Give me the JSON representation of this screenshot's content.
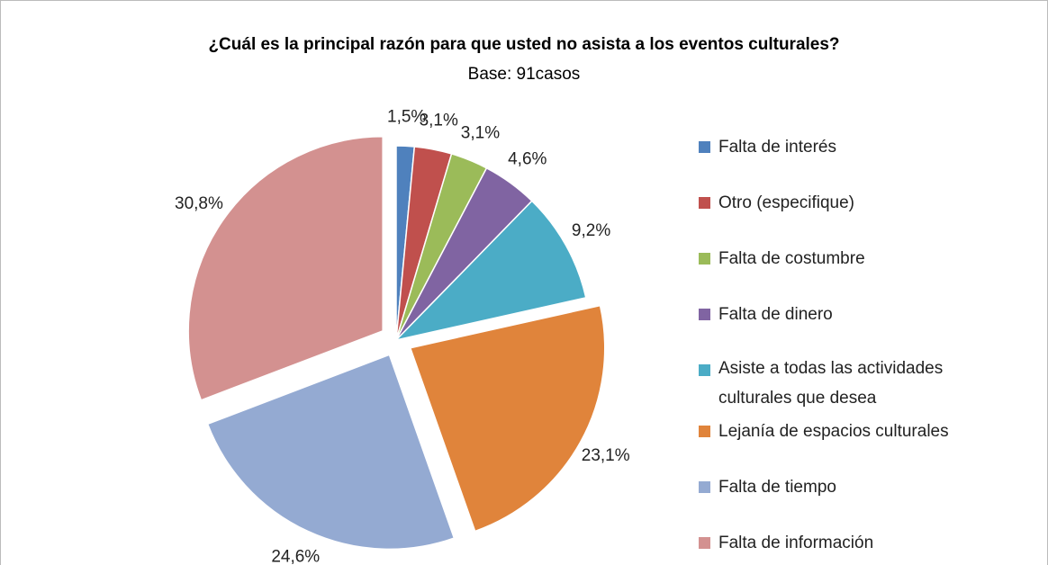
{
  "chart_data": {
    "type": "pie",
    "title": "¿Cuál es la principal razón para que usted no asista a los eventos culturales?",
    "subtitle": "Base: 91casos",
    "categories": [
      "Falta de interés",
      "Otro (especifique)",
      "Falta de costumbre",
      "Falta de dinero",
      "Asiste a todas las actividades culturales que desea",
      "Lejanía de espacios culturales",
      "Falta de tiempo",
      "Falta de información"
    ],
    "values": [
      1.5,
      3.1,
      3.1,
      4.6,
      9.2,
      23.1,
      24.6,
      30.8
    ],
    "value_labels": [
      "1,5%",
      "3,1%",
      "3,1%",
      "4,6%",
      "9,2%",
      "23,1%",
      "24,6%",
      "30,8%"
    ],
    "colors": [
      "#4f81bd",
      "#c0504d",
      "#9bbb59",
      "#8064a2",
      "#4bacc6",
      "#e0843b",
      "#94aad2",
      "#d39190"
    ],
    "legend": "right"
  }
}
